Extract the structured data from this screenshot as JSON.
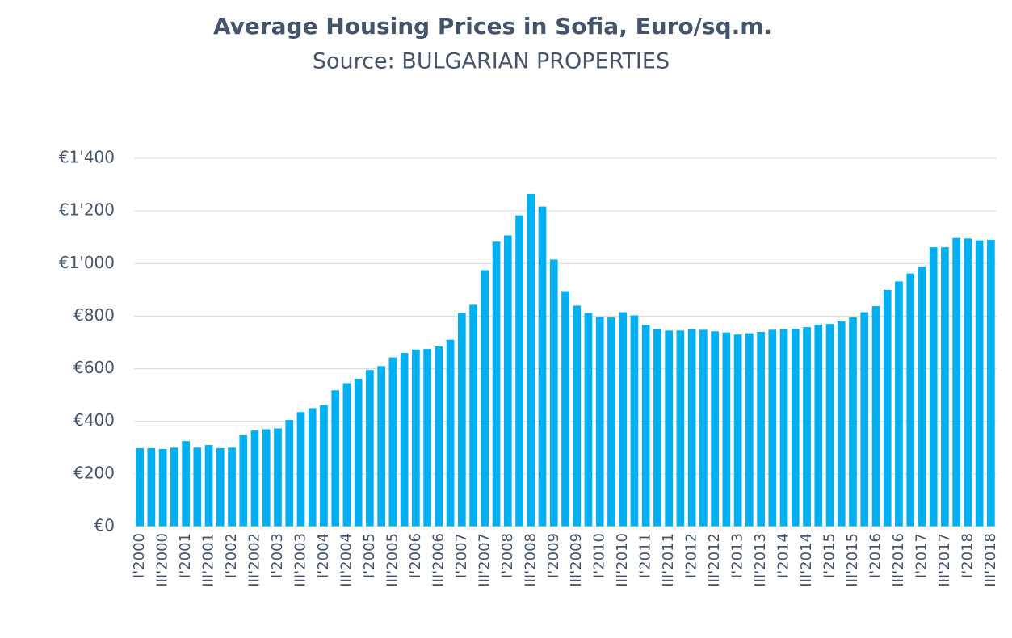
{
  "chart_data": {
    "type": "bar",
    "title": "Average Housing Prices in Sofia, Euro/sq.m.",
    "subtitle": "Source: BULGARIAN PROPERTIES",
    "categories": [
      "I'2000",
      null,
      "III'2000",
      null,
      "I'2001",
      null,
      "III'2001",
      null,
      "I'2002",
      null,
      "III'2002",
      null,
      "I'2003",
      null,
      "III'2003",
      null,
      "I'2004",
      null,
      "III'2004",
      null,
      "I'2005",
      null,
      "III'2005",
      null,
      "I'2006",
      null,
      "III'2006",
      null,
      "I'2007",
      null,
      "III'2007",
      null,
      "I'2008",
      null,
      "III'2008",
      null,
      "I'2009",
      null,
      "III'2009",
      null,
      "I'2010",
      null,
      "III'2010",
      null,
      "I'2011",
      null,
      "III'2011",
      null,
      "I'2012",
      null,
      "III'2012",
      null,
      "I'2013",
      null,
      "III'2013",
      null,
      "I'2014",
      null,
      "III'2014",
      null,
      "I'2015",
      null,
      "III'2015",
      null,
      "I'2016",
      null,
      "III'2016",
      null,
      "I'2017",
      null,
      "III'2017",
      null,
      "I'2018",
      null,
      "III'2018"
    ],
    "values": [
      298,
      298,
      295,
      300,
      325,
      300,
      310,
      298,
      300,
      347,
      365,
      370,
      373,
      405,
      435,
      450,
      462,
      518,
      545,
      562,
      595,
      610,
      643,
      660,
      673,
      675,
      685,
      710,
      812,
      843,
      975,
      1083,
      1107,
      1183,
      1265,
      1217,
      1015,
      895,
      840,
      812,
      797,
      795,
      815,
      803,
      766,
      750,
      745,
      745,
      750,
      748,
      742,
      738,
      730,
      735,
      740,
      748,
      750,
      752,
      758,
      768,
      770,
      780,
      795,
      815,
      838,
      900,
      932,
      962,
      988,
      1062,
      1062,
      1097,
      1095,
      1088,
      1090
    ],
    "color": "#00b0f0",
    "ylim": [
      0,
      1400
    ],
    "yticks": [
      {
        "value": 0,
        "label": "€0"
      },
      {
        "value": 200,
        "label": "€200"
      },
      {
        "value": 400,
        "label": "€400"
      },
      {
        "value": 600,
        "label": "€600"
      },
      {
        "value": 800,
        "label": "€800"
      },
      {
        "value": 1000,
        "label": "€1'000"
      },
      {
        "value": 1200,
        "label": "€1'200"
      },
      {
        "value": 1400,
        "label": "€1'400"
      }
    ],
    "grid": true
  }
}
